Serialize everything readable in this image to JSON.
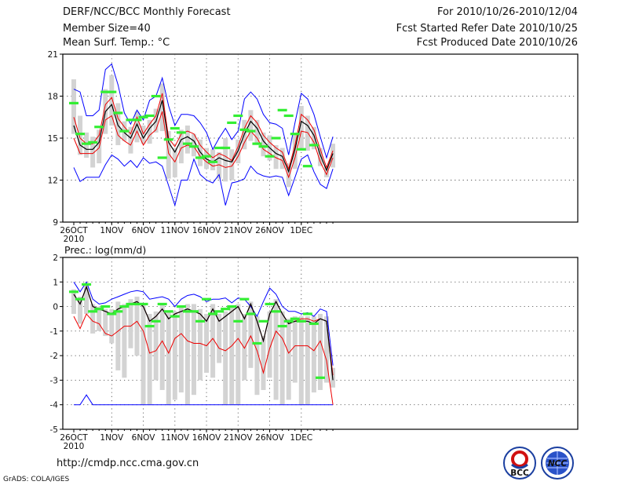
{
  "header": {
    "title": "DERF/NCC/BCC Monthly Forecast",
    "member_size": "Member Size=40",
    "variable": "Mean Surf. Temp.: °C",
    "period": "For 2010/10/26-2010/12/04",
    "started": "Fcst Started Refer Date 2010/10/25",
    "produced": "Fcst Produced Date 2010/10/26"
  },
  "footer": {
    "url": "http://cmdp.ncc.cma.gov.cn",
    "credit": "GrADS: COLA/IGES"
  },
  "logos": {
    "left_text": "BCC",
    "right_text": "NCC"
  },
  "colors": {
    "envelope": "#0000ff",
    "bound": "#ee0000",
    "mean": "#000000",
    "box": "#d3d3d3",
    "dash": "#33ee33"
  },
  "chart_data": [
    {
      "type": "line",
      "title": "Mean Surf. Temp.: °C",
      "xlabel": "",
      "ylabel": "",
      "ylim": [
        9,
        21
      ],
      "yticks": [
        "9",
        "12",
        "15",
        "18",
        "21"
      ],
      "xticks": [
        {
          "day": 0,
          "label": "26OCT",
          "sub": "2010"
        },
        {
          "day": 6,
          "label": "1NOV"
        },
        {
          "day": 11,
          "label": "6NOV"
        },
        {
          "day": 16,
          "label": "11NOV"
        },
        {
          "day": 21,
          "label": "16NOV"
        },
        {
          "day": 26,
          "label": "21NOV"
        },
        {
          "day": 31,
          "label": "26NOV"
        },
        {
          "day": 36,
          "label": "1DEC"
        }
      ],
      "max": [
        18.5,
        18.3,
        16.6,
        16.6,
        17.0,
        19.9,
        20.3,
        18.8,
        16.8,
        16.0,
        17.0,
        16.3,
        17.7,
        18.0,
        19.3,
        17.3,
        15.9,
        16.7,
        16.7,
        16.6,
        16.1,
        15.4,
        14.2,
        15.0,
        15.7,
        14.9,
        15.5,
        17.8,
        18.3,
        17.8,
        16.7,
        16.1,
        16.0,
        15.7,
        13.8,
        16.1,
        18.2,
        17.8,
        16.7,
        15.1,
        13.6,
        15.1
      ],
      "upper": [
        16.5,
        15.0,
        14.6,
        14.6,
        15.2,
        17.4,
        17.9,
        16.4,
        15.8,
        15.3,
        16.5,
        15.3,
        16.0,
        16.6,
        18.2,
        15.0,
        14.4,
        15.3,
        15.5,
        15.3,
        14.5,
        14.0,
        13.6,
        13.9,
        13.7,
        13.4,
        14.4,
        15.7,
        16.6,
        16.1,
        15.2,
        14.7,
        14.3,
        14.0,
        12.8,
        14.5,
        16.7,
        16.3,
        15.6,
        14.2,
        12.9,
        14.1
      ],
      "mean": [
        15.9,
        14.5,
        14.2,
        14.2,
        14.7,
        16.9,
        17.4,
        15.9,
        15.4,
        15.0,
        16.0,
        15.0,
        15.7,
        16.2,
        17.7,
        14.7,
        14.0,
        14.9,
        15.1,
        14.8,
        14.0,
        13.5,
        13.3,
        13.6,
        13.4,
        13.3,
        14.1,
        15.3,
        16.2,
        15.7,
        14.8,
        14.3,
        13.9,
        13.7,
        12.6,
        14.2,
        16.2,
        15.9,
        15.2,
        13.8,
        12.7,
        13.9
      ],
      "lower": [
        15.0,
        13.9,
        13.9,
        13.9,
        14.3,
        16.3,
        16.6,
        15.2,
        14.8,
        14.5,
        15.5,
        14.5,
        15.2,
        15.6,
        16.9,
        13.9,
        13.3,
        14.3,
        14.5,
        14.4,
        13.7,
        13.3,
        13.0,
        13.1,
        12.9,
        13.0,
        13.7,
        14.7,
        15.5,
        15.0,
        14.2,
        13.9,
        13.6,
        13.4,
        12.2,
        13.6,
        15.5,
        15.4,
        14.7,
        13.3,
        12.4,
        13.6
      ],
      "min": [
        12.9,
        11.9,
        12.2,
        12.2,
        12.2,
        13.1,
        13.8,
        13.5,
        13.0,
        13.4,
        12.9,
        13.6,
        13.2,
        13.3,
        13.0,
        11.6,
        10.2,
        12.0,
        12.0,
        13.5,
        12.4,
        12.0,
        11.8,
        12.4,
        10.2,
        11.8,
        11.9,
        12.1,
        13.0,
        12.5,
        12.3,
        12.2,
        12.3,
        12.2,
        10.9,
        12.2,
        13.5,
        13.8,
        12.6,
        11.7,
        11.4,
        12.8
      ],
      "box_top": [
        19.2,
        16.6,
        15.4,
        15.1,
        15.6,
        18.5,
        19.5,
        17.5,
        16.2,
        15.8,
        16.9,
        15.9,
        16.3,
        17.1,
        18.9,
        15.5,
        14.3,
        15.6,
        15.9,
        15.3,
        14.9,
        14.3,
        14.2,
        14.0,
        15.0,
        14.2,
        14.9,
        16.3,
        17.0,
        16.3,
        15.4,
        15.2,
        14.5,
        14.3,
        13.2,
        15.3,
        17.3,
        16.6,
        15.8,
        14.3,
        13.0,
        14.6
      ],
      "box_bottom": [
        15.3,
        13.8,
        13.6,
        12.9,
        13.2,
        15.3,
        15.9,
        14.5,
        14.8,
        13.9,
        14.7,
        14.6,
        14.6,
        15.4,
        15.5,
        12.1,
        12.2,
        13.2,
        13.9,
        13.7,
        13.0,
        12.8,
        12.7,
        12.1,
        11.9,
        12.0,
        13.2,
        14.2,
        14.8,
        14.6,
        13.7,
        13.4,
        12.8,
        12.8,
        11.5,
        12.8,
        14.3,
        14.1,
        14.2,
        13.0,
        12.2,
        12.9
      ],
      "observed": [
        17.5,
        15.3,
        14.6,
        14.7,
        15.8,
        18.3,
        18.3,
        16.8,
        15.5,
        16.3,
        16.3,
        16.5,
        16.6,
        18.0,
        13.6,
        14.9,
        15.7,
        15.4,
        14.6,
        14.4,
        13.6,
        13.7,
        13.3,
        14.3,
        14.3,
        16.1,
        16.6,
        15.6,
        15.5,
        14.6,
        14.4,
        13.7,
        15.0,
        17.0,
        16.6,
        15.3,
        14.2,
        13.0,
        14.5,
        null,
        null,
        null
      ]
    },
    {
      "type": "line",
      "title": "Prec.: log(mm/d)",
      "xlabel": "",
      "ylabel": "",
      "ylim": [
        -5,
        2
      ],
      "yticks": [
        "-5",
        "-4",
        "-3",
        "-2",
        "-1",
        "0",
        "1",
        "2"
      ],
      "xticks": [
        {
          "day": 0,
          "label": "26OCT",
          "sub": "2010"
        },
        {
          "day": 6,
          "label": "1NOV"
        },
        {
          "day": 11,
          "label": "6NOV"
        },
        {
          "day": 16,
          "label": "11NOV"
        },
        {
          "day": 21,
          "label": "16NOV"
        },
        {
          "day": 26,
          "label": "21NOV"
        },
        {
          "day": 31,
          "label": "26NOV"
        },
        {
          "day": 36,
          "label": "1DEC"
        }
      ],
      "max": [
        1.0,
        0.6,
        1.0,
        0.3,
        0.1,
        0.15,
        0.3,
        0.4,
        0.5,
        0.6,
        0.65,
        0.6,
        0.3,
        0.35,
        0.4,
        0.3,
        0.0,
        0.3,
        0.45,
        0.5,
        0.4,
        0.2,
        0.3,
        0.3,
        0.35,
        0.15,
        0.35,
        0.3,
        0.0,
        -0.4,
        0.2,
        0.75,
        0.5,
        0.0,
        -0.2,
        -0.2,
        -0.3,
        -0.25,
        -0.4,
        -0.1,
        -0.2,
        -2.4
      ],
      "upper": [
        0.5,
        0.1,
        0.8,
        0.0,
        -0.1,
        -0.2,
        -0.3,
        -0.1,
        0.0,
        0.1,
        0.2,
        0.0,
        -0.6,
        -0.4,
        -0.1,
        -0.5,
        -0.3,
        -0.2,
        -0.1,
        -0.2,
        -0.3,
        -0.6,
        -0.1,
        -0.6,
        -0.4,
        -0.2,
        0.0,
        -0.5,
        0.1,
        -0.6,
        -1.4,
        -0.3,
        0.2,
        -0.3,
        -0.7,
        -0.6,
        -0.5,
        -0.5,
        -0.6,
        -0.5,
        -0.6,
        -2.8
      ],
      "mean": [
        0.5,
        0.1,
        0.8,
        0.0,
        -0.1,
        -0.2,
        -0.3,
        -0.1,
        0.0,
        0.1,
        0.2,
        0.0,
        -0.6,
        -0.4,
        -0.1,
        -0.5,
        -0.3,
        -0.2,
        -0.1,
        -0.2,
        -0.3,
        -0.6,
        -0.1,
        -0.6,
        -0.4,
        -0.2,
        0.0,
        -0.5,
        0.1,
        -0.6,
        -1.4,
        -0.3,
        0.2,
        -0.3,
        -0.7,
        -0.6,
        -0.6,
        -0.6,
        -0.7,
        -0.5,
        -0.6,
        -3.0
      ],
      "lower": [
        -0.4,
        -0.9,
        -0.3,
        -0.6,
        -0.7,
        -1.1,
        -1.2,
        -1.0,
        -0.8,
        -0.8,
        -0.6,
        -1.0,
        -1.9,
        -1.8,
        -1.4,
        -1.9,
        -1.3,
        -1.1,
        -1.4,
        -1.5,
        -1.5,
        -1.6,
        -1.3,
        -1.7,
        -1.8,
        -1.6,
        -1.3,
        -1.7,
        -1.2,
        -1.8,
        -2.7,
        -1.7,
        -1.0,
        -1.3,
        -1.9,
        -1.6,
        -1.6,
        -1.6,
        -1.8,
        -1.4,
        -2.2,
        -4.0
      ],
      "min": [
        -4.0,
        -4.0,
        -3.6,
        -4.0,
        -4.0,
        -4.0,
        -4.0,
        -4.0,
        -4.0,
        -4.0,
        -4.0,
        -4.0,
        -4.0,
        -4.0,
        -4.0,
        -4.0,
        -4.0,
        -4.0,
        -4.0,
        -4.0,
        -4.0,
        -4.0,
        -4.0,
        -4.0,
        -4.0,
        -4.0,
        -4.0,
        -4.0,
        -4.0,
        -4.0,
        -4.0,
        -4.0,
        -4.0,
        -4.0,
        -4.0,
        -4.0,
        -4.0,
        -4.0,
        -4.0,
        -4.0,
        -4.0,
        -4.0
      ],
      "box_top": [
        0.7,
        0.4,
        0.9,
        0.1,
        0.0,
        -0.1,
        -0.1,
        0.2,
        0.1,
        0.3,
        0.4,
        0.1,
        -0.3,
        -0.2,
        0.1,
        -0.2,
        -0.2,
        0.0,
        0.1,
        0.1,
        -0.1,
        -0.3,
        0.1,
        -0.3,
        -0.2,
        0.0,
        0.1,
        -0.3,
        0.2,
        -0.4,
        -1.2,
        -0.2,
        0.3,
        -0.2,
        -0.5,
        -0.4,
        -0.4,
        -0.4,
        -0.4,
        -0.3,
        -0.4,
        -2.5
      ],
      "box_bottom": [
        -0.3,
        -0.7,
        -0.3,
        -1.1,
        -1.0,
        -1.2,
        -1.5,
        -2.6,
        -2.9,
        -1.7,
        -2.0,
        -4.0,
        -4.0,
        -3.0,
        -3.4,
        -4.0,
        -3.8,
        -3.5,
        -4.0,
        -3.6,
        -3.0,
        -2.7,
        -2.9,
        -2.3,
        -4.0,
        -4.0,
        -4.0,
        -3.0,
        -2.5,
        -3.6,
        -3.4,
        -2.9,
        -3.8,
        -4.0,
        -3.8,
        -3.1,
        -4.0,
        -4.0,
        -3.5,
        -3.4,
        -3.1,
        -3.3
      ],
      "observed": [
        0.6,
        0.3,
        0.9,
        -0.2,
        -0.1,
        0.0,
        -0.3,
        -0.2,
        0.0,
        0.1,
        0.1,
        0.1,
        -0.8,
        -0.6,
        0.1,
        -0.2,
        -0.4,
        0.0,
        -0.2,
        -0.2,
        -0.6,
        0.3,
        -0.3,
        -0.2,
        -0.1,
        0.0,
        -0.6,
        0.3,
        -0.3,
        -1.5,
        -0.6,
        0.1,
        -0.2,
        -0.8,
        -0.6,
        -0.5,
        -0.6,
        -0.3,
        -0.7,
        -2.9,
        null,
        null
      ]
    }
  ]
}
